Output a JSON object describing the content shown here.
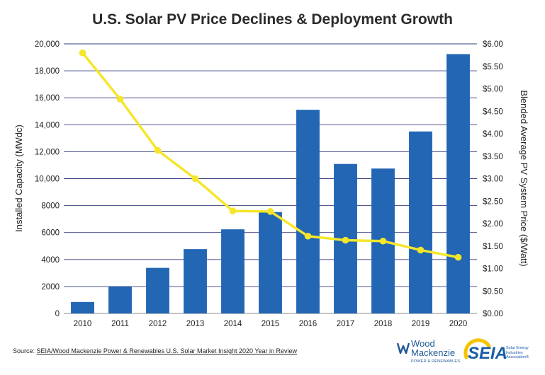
{
  "chart_data": {
    "type": "bar+line",
    "title": "U.S. Solar PV Price Declines & Deployment Growth",
    "categories": [
      "2010",
      "2011",
      "2012",
      "2013",
      "2014",
      "2015",
      "2016",
      "2017",
      "2018",
      "2019",
      "2020"
    ],
    "series": [
      {
        "type": "bar",
        "axis": "left",
        "color": "#2266b4",
        "values": [
          850,
          1990,
          3380,
          4770,
          6240,
          7520,
          15110,
          11090,
          10750,
          13500,
          19240
        ]
      },
      {
        "type": "line",
        "axis": "right",
        "color": "#f5e62a",
        "values": [
          5.8,
          4.77,
          3.63,
          3.0,
          2.28,
          2.27,
          1.72,
          1.63,
          1.61,
          1.41,
          1.25
        ]
      }
    ],
    "ylabel_left": "Installed Capacity (MWdc)",
    "ylabel_right": "Blended Average PV System Price ($/Watt)",
    "ylim_left": [
      0,
      20000
    ],
    "ylim_right": [
      0,
      6
    ],
    "yticks_left": [
      "0",
      "2000",
      "4000",
      "6000",
      "8000",
      "10,000",
      "12,000",
      "14,000",
      "16,000",
      "18,000",
      "20,000"
    ],
    "yticks_right": [
      "$0.00",
      "$0.50",
      "$1.00",
      "$1.50",
      "$2.00",
      "$2.50",
      "$3.00",
      "$3.50",
      "$4.00",
      "$4.50",
      "$5.00",
      "$5.50",
      "$6.00"
    ],
    "grid": true
  },
  "footer": {
    "source_prefix": "Source: ",
    "source_text": "SEIA/Wood Mackenzie Power & Renewables U.S. Solar Market Insight 2020 Year in Review"
  },
  "logos": {
    "woodmac_line1": "Wood",
    "woodmac_line2": "Mackenzie",
    "woodmac_tagline": "POWER & RENEWABLES",
    "seia_word": "SEIA",
    "seia_full": "Solar Energy Industries Association®"
  }
}
